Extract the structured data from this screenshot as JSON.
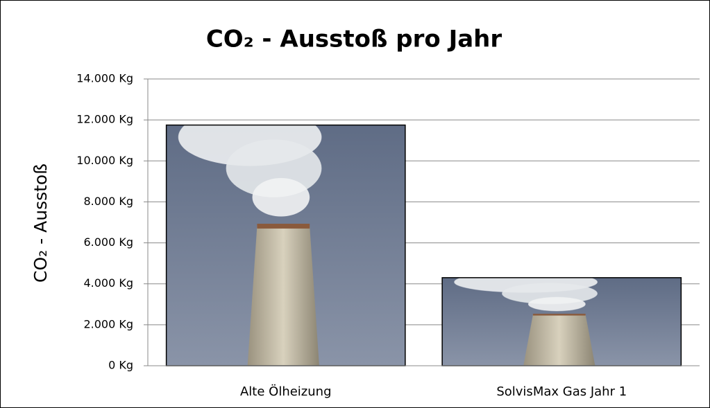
{
  "chart_data": {
    "type": "bar",
    "title": "CO₂ - Ausstoß pro Jahr",
    "y_label": "CO₂ - Ausstoß",
    "categories": [
      "Alte Ölheizung",
      "SolvisMax Gas Jahr 1"
    ],
    "values": [
      11750,
      4300
    ],
    "ylim": [
      0,
      14000
    ],
    "yticks": [
      {
        "value": 0,
        "label": "0 Kg"
      },
      {
        "value": 2000,
        "label": "2.000 Kg"
      },
      {
        "value": 4000,
        "label": "4.000 Kg"
      },
      {
        "value": 6000,
        "label": "6.000 Kg"
      },
      {
        "value": 8000,
        "label": "8.000 Kg"
      },
      {
        "value": 10000,
        "label": "10.000 Kg"
      },
      {
        "value": 12000,
        "label": "12.000 Kg"
      },
      {
        "value": 14000,
        "label": "14.000 Kg"
      }
    ],
    "grid": true
  }
}
